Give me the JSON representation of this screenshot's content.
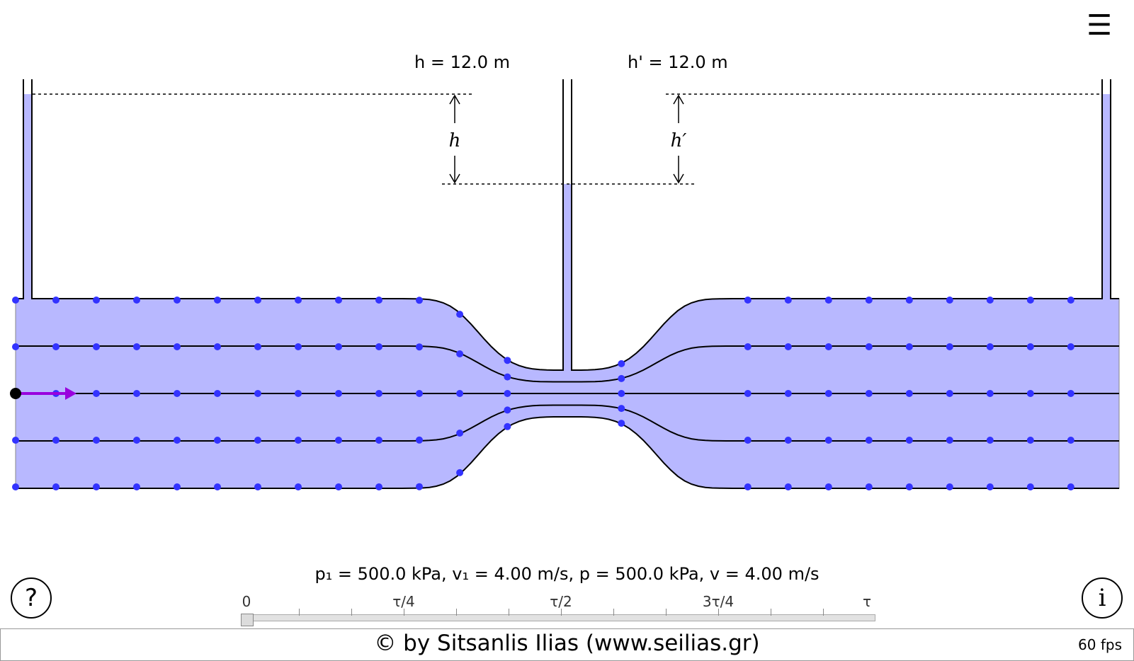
{
  "diagram": {
    "h_label": "h = 12.0 m",
    "h_prime_label": "h' = 12.0 m",
    "h_symbol": "h",
    "h_prime_symbol": "h′",
    "fluid_color": "#b8b8ff",
    "particle_color": "#3333ff",
    "velocity_arrow_color": "#9900dd",
    "streamline_count": 5
  },
  "readout": {
    "text": "p₁ = 500.0 kPa, v₁ = 4.00 m/s, p = 500.0 kPa, v = 4.00 m/s",
    "p1": "500.0 kPa",
    "v1": "4.00 m/s",
    "p": "500.0 kPa",
    "v": "4.00 m/s"
  },
  "timeline": {
    "labels": [
      "0",
      "τ/4",
      "τ/2",
      "3τ/4",
      "τ"
    ],
    "position": 0
  },
  "buttons": {
    "menu_icon": "☰",
    "help_icon": "?",
    "info_icon": "i"
  },
  "footer": {
    "credit": "© by Sitsanlis Ilias (www.seilias.gr)",
    "fps": "60 fps"
  }
}
